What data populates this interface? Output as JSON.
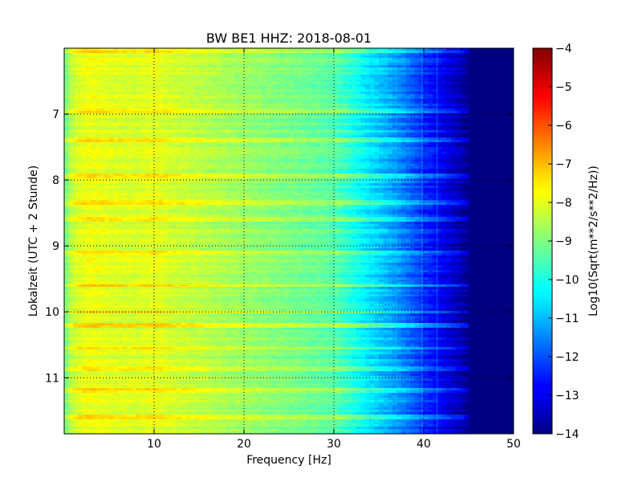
{
  "chart_data": {
    "type": "heatmap",
    "title": "BW BE1 HHZ: 2018-08-01",
    "xlabel": "Frequency [Hz]",
    "ylabel": "Lokalzeit (UTC + 2 Stunde)",
    "xlim": [
      0,
      50
    ],
    "ylim": [
      6.0,
      11.85
    ],
    "y_inverted": true,
    "x_ticks": [
      10,
      20,
      30,
      40,
      50
    ],
    "x_tick_labels": [
      "10",
      "20",
      "30",
      "40",
      "50"
    ],
    "y_ticks": [
      7,
      8,
      9,
      10,
      11
    ],
    "y_tick_labels": [
      "7",
      "8",
      "9",
      "10",
      "11"
    ],
    "grid": true,
    "colormap": "jet",
    "colorbar": {
      "label": "Log10(Sqrt(m**2/s**2/Hz))",
      "range": [
        -14,
        -4
      ],
      "ticks": [
        -4,
        -5,
        -6,
        -7,
        -8,
        -9,
        -10,
        -11,
        -12,
        -13,
        -14
      ],
      "tick_labels": [
        "−4",
        "−5",
        "−6",
        "−7",
        "−8",
        "−9",
        "−10",
        "−11",
        "−12",
        "−13",
        "−14"
      ]
    },
    "spectrum_profile": {
      "frequency_hz": [
        0,
        0.5,
        1,
        2,
        3,
        5,
        8,
        10,
        12,
        15,
        20,
        25,
        28,
        30,
        32,
        34,
        36,
        38,
        40,
        42,
        44,
        45,
        46,
        50
      ],
      "level": [
        -9.4,
        -8.6,
        -8.3,
        -8.0,
        -7.9,
        -8.05,
        -8.15,
        -8.0,
        -8.2,
        -8.4,
        -8.75,
        -9.05,
        -9.25,
        -9.4,
        -9.95,
        -10.5,
        -11.0,
        -11.6,
        -12.3,
        -12.9,
        -13.5,
        -13.9,
        -14.0,
        -14.0
      ]
    },
    "bright_rows_local_time": [
      6.05,
      6.95,
      7.4,
      7.95,
      8.35,
      8.6,
      9.1,
      9.6,
      10.0,
      10.2,
      10.55,
      10.85,
      11.2,
      11.6
    ],
    "spectral_lines_hz": [
      34.0,
      37.0,
      39.8,
      41.5
    ]
  }
}
